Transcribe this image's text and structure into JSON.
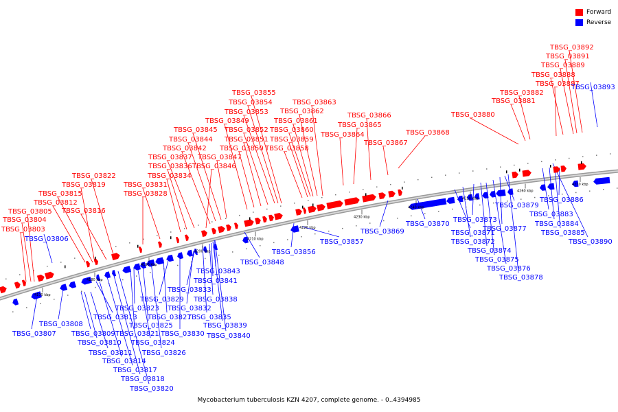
{
  "legend": {
    "forward_label": "Forward",
    "reverse_label": "Reverse",
    "forward_color": "#ff0000",
    "reverse_color": "#0000ff"
  },
  "caption": "Mycobacterium tuberculosis KZN 4207, complete genome. - 0..4394985",
  "ticks": [
    "4170 kbp",
    "4180 kbp",
    "4190 kbp",
    "4200 kbp",
    "4210 kbp",
    "4220 kbp",
    "4230 kbp",
    "4240 kbp",
    "4250 kbp",
    "4260 kbp",
    "4270 kbp"
  ],
  "forward_genes": [
    "TBSG_03803",
    "TBSG_03804",
    "TBSG_03805",
    "TBSG_03812",
    "TBSG_03815",
    "TBSG_03816",
    "TBSG_03819",
    "TBSG_03822",
    "TBSG_03828",
    "TBSG_03831",
    "TBSG_03834",
    "TBSG_03836",
    "TBSG_03837",
    "TBSG_03842",
    "TBSG_03844",
    "TBSG_03845",
    "TBSG_03846",
    "TBSG_03847",
    "TBSG_03849",
    "TBSG_03850",
    "TBSG_03851",
    "TBSG_03852",
    "TBSG_03853",
    "TBSG_03854",
    "TBSG_03855",
    "TBSG_03858",
    "TBSG_03859",
    "TBSG_03860",
    "TBSG_03861",
    "TBSG_03862",
    "TBSG_03863",
    "TBSG_03864",
    "TBSG_03865",
    "TBSG_03866",
    "TBSG_03867",
    "TBSG_03868",
    "TBSG_03880",
    "TBSG_03881",
    "TBSG_03882",
    "TBSG_03887",
    "TBSG_03888",
    "TBSG_03889",
    "TBSG_03891",
    "TBSG_03892"
  ],
  "reverse_genes": [
    "TBSG_03806",
    "TBSG_03807",
    "TBSG_03808",
    "TBSG_03809",
    "TBSG_03810",
    "TBSG_03811",
    "TBSG_03813",
    "TBSG_03814",
    "TBSG_03817",
    "TBSG_03818",
    "TBSG_03820",
    "TBSG_03821",
    "TBSG_03823",
    "TBSG_03824",
    "TBSG_03825",
    "TBSG_03826",
    "TBSG_03827",
    "TBSG_03829",
    "TBSG_03830",
    "TBSG_03832",
    "TBSG_03833",
    "TBSG_03835",
    "TBSG_03838",
    "TBSG_03839",
    "TBSG_03840",
    "TBSG_03841",
    "TBSG_03843",
    "TBSG_03848",
    "TBSG_03856",
    "TBSG_03857",
    "TBSG_03869",
    "TBSG_03870",
    "TBSG_03871",
    "TBSG_03872",
    "TBSG_03873",
    "TBSG_03874",
    "TBSG_03875",
    "TBSG_03876",
    "TBSG_03877",
    "TBSG_03878",
    "TBSG_03879",
    "TBSG_03883",
    "TBSG_03884",
    "TBSG_03885",
    "TBSG_03886",
    "TBSG_03890",
    "TBSG_03893"
  ]
}
